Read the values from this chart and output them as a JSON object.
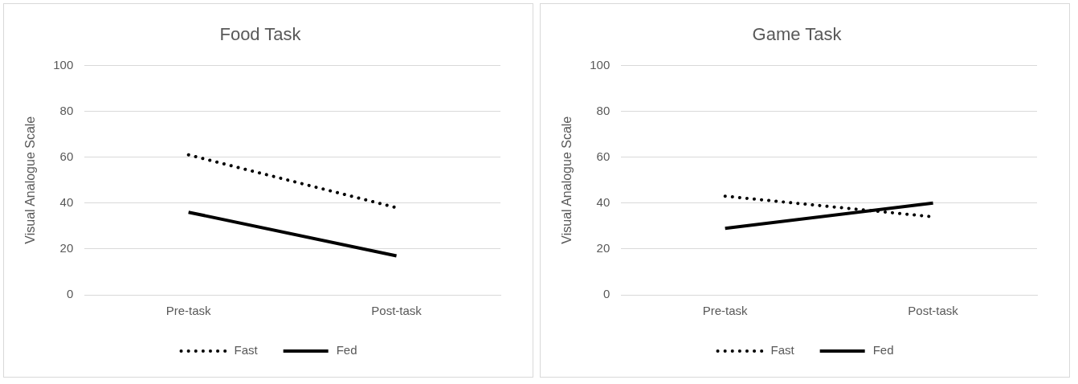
{
  "chart_data": [
    {
      "type": "line",
      "title": "Food Task",
      "ylabel": "Visual Analogue Scale",
      "categories": [
        "Pre-task",
        "Post-task"
      ],
      "series": [
        {
          "name": "Fast",
          "color": "#000000",
          "values": [
            61,
            38
          ],
          "line_style": "dotted"
        },
        {
          "name": "Fed",
          "color": "#000000",
          "values": [
            36,
            17
          ],
          "line_style": "solid"
        }
      ],
      "ylim": [
        0,
        100
      ],
      "yticks": [
        0,
        20,
        40,
        60,
        80,
        100
      ],
      "grid": "y",
      "legend": "bottom",
      "marker": "none"
    },
    {
      "type": "line",
      "title": "Game Task",
      "ylabel": "Visual Analogue Scale",
      "categories": [
        "Pre-task",
        "Post-task"
      ],
      "series": [
        {
          "name": "Fast",
          "color": "#000000",
          "values": [
            43,
            34
          ],
          "line_style": "dotted"
        },
        {
          "name": "Fed",
          "color": "#000000",
          "values": [
            29,
            40
          ],
          "line_style": "solid"
        }
      ],
      "ylim": [
        0,
        100
      ],
      "yticks": [
        0,
        20,
        40,
        60,
        80,
        100
      ],
      "grid": "y",
      "legend": "bottom",
      "marker": "none"
    }
  ]
}
